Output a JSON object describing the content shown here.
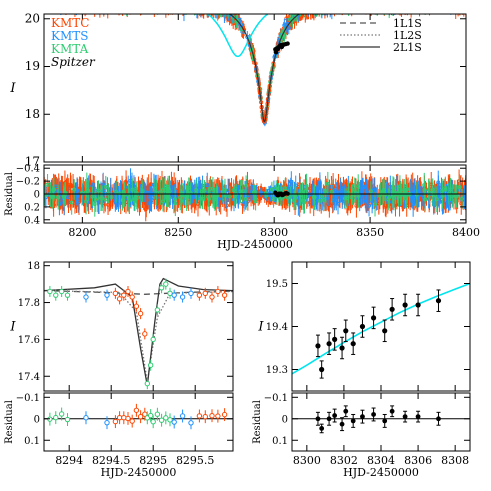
{
  "chart_data": [
    {
      "type": "scatter",
      "panel": "top-main",
      "ylabel": "I",
      "xlim": [
        8180,
        8400
      ],
      "ylim": [
        20.1,
        17.0
      ],
      "y_inverted": true,
      "yticks": [
        17,
        18,
        19,
        20
      ],
      "legend": {
        "placement": "top-left and top-right",
        "datasets": [
          {
            "name": "KMTC",
            "color": "#ff4500"
          },
          {
            "name": "KMTS",
            "color": "#1e90ff"
          },
          {
            "name": "KMTA",
            "color": "#2ecc71"
          },
          {
            "name": "Spitzer",
            "color": "#000000"
          }
        ],
        "models": [
          {
            "name": "1L1S",
            "style": "dashed",
            "color": "#555555"
          },
          {
            "name": "1L2S",
            "style": "dotted",
            "color": "#777777"
          },
          {
            "name": "2L1S",
            "style": "solid",
            "color": "#333333"
          }
        ]
      },
      "ground_model": {
        "t0": 8294.9,
        "u0": 0.1,
        "tE": 16,
        "baseline": 20.35
      },
      "spitzer_model": {
        "t0": 8281,
        "u0": 0.35,
        "tE": 16,
        "baseline": 20.4,
        "color": "#00e5ee"
      },
      "spitzer_points": [
        [
          8300.6,
          19.36
        ],
        [
          8301.0,
          19.3
        ],
        [
          8301.5,
          19.38
        ],
        [
          8302.0,
          19.37
        ],
        [
          8302.5,
          19.41
        ],
        [
          8303.0,
          19.43
        ],
        [
          8303.5,
          19.45
        ],
        [
          8304.0,
          19.41
        ],
        [
          8304.5,
          19.45
        ],
        [
          8305.0,
          19.46
        ],
        [
          8306.0,
          19.47
        ],
        [
          8307.0,
          19.48
        ]
      ]
    },
    {
      "type": "scatter",
      "panel": "top-residual",
      "ylabel": "Residual",
      "xlabel": "HJD-2450000",
      "xlim": [
        8180,
        8400
      ],
      "ylim": [
        -0.45,
        0.45
      ],
      "xticks": [
        8200,
        8250,
        8300,
        8350,
        8400
      ],
      "yticks": [
        -0.4,
        -0.2,
        0,
        0.2,
        0.4
      ],
      "ytick_labels": [
        "−0.4",
        "−0.2",
        "0",
        "0.2",
        "0.4"
      ]
    },
    {
      "type": "scatter",
      "panel": "bottom-left-main",
      "ylabel": "I",
      "xlim": [
        8293.7,
        8295.95
      ],
      "ylim": [
        18.02,
        17.32
      ],
      "y_inverted": true,
      "yticks": [
        17.4,
        17.6,
        17.8,
        18
      ],
      "ytick_labels": [
        "17.4",
        "17.6",
        "17.8",
        "18"
      ],
      "points": [
        {
          "dataset": "KMTA",
          "x": 8293.77,
          "y": 17.86
        },
        {
          "dataset": "KMTA",
          "x": 8293.84,
          "y": 17.84
        },
        {
          "dataset": "KMTA",
          "x": 8293.91,
          "y": 17.86
        },
        {
          "dataset": "KMTA",
          "x": 8293.98,
          "y": 17.84
        },
        {
          "dataset": "KMTS",
          "x": 8294.2,
          "y": 17.83
        },
        {
          "dataset": "KMTS",
          "x": 8294.45,
          "y": 17.84
        },
        {
          "dataset": "KMTC",
          "x": 8294.55,
          "y": 17.85
        },
        {
          "dataset": "KMTC",
          "x": 8294.6,
          "y": 17.82
        },
        {
          "dataset": "KMTC",
          "x": 8294.65,
          "y": 17.84
        },
        {
          "dataset": "KMTC",
          "x": 8294.7,
          "y": 17.86
        },
        {
          "dataset": "KMTC",
          "x": 8294.75,
          "y": 17.83
        },
        {
          "dataset": "KMTC",
          "x": 8294.8,
          "y": 17.78
        },
        {
          "dataset": "KMTC",
          "x": 8294.85,
          "y": 17.74
        },
        {
          "dataset": "KMTC",
          "x": 8294.9,
          "y": 17.63
        },
        {
          "dataset": "KMTA",
          "x": 8294.93,
          "y": 17.36
        },
        {
          "dataset": "KMTA",
          "x": 8294.97,
          "y": 17.46
        },
        {
          "dataset": "KMTA",
          "x": 8295.0,
          "y": 17.6
        },
        {
          "dataset": "KMTA",
          "x": 8295.05,
          "y": 17.76
        },
        {
          "dataset": "KMTA",
          "x": 8295.1,
          "y": 17.88
        },
        {
          "dataset": "KMTA",
          "x": 8295.15,
          "y": 17.9
        },
        {
          "dataset": "KMTA",
          "x": 8295.2,
          "y": 17.85
        },
        {
          "dataset": "KMTS",
          "x": 8295.25,
          "y": 17.84
        },
        {
          "dataset": "KMTS",
          "x": 8295.35,
          "y": 17.83
        },
        {
          "dataset": "KMTS",
          "x": 8295.45,
          "y": 17.85
        },
        {
          "dataset": "KMTC",
          "x": 8295.55,
          "y": 17.84
        },
        {
          "dataset": "KMTC",
          "x": 8295.62,
          "y": 17.85
        },
        {
          "dataset": "KMTC",
          "x": 8295.7,
          "y": 17.83
        },
        {
          "dataset": "KMTC",
          "x": 8295.77,
          "y": 17.86
        },
        {
          "dataset": "KMTC",
          "x": 8295.85,
          "y": 17.84
        }
      ],
      "models": {
        "1L1S": [
          [
            8293.7,
            17.865
          ],
          [
            8294.4,
            17.855
          ],
          [
            8294.9,
            17.845
          ],
          [
            8295.4,
            17.855
          ],
          [
            8295.95,
            17.862
          ]
        ],
        "1L2S": [
          [
            8293.7,
            17.865
          ],
          [
            8294.6,
            17.855
          ],
          [
            8294.8,
            17.75
          ],
          [
            8294.93,
            17.37
          ],
          [
            8295.05,
            17.72
          ],
          [
            8295.2,
            17.85
          ],
          [
            8295.95,
            17.86
          ]
        ],
        "2L1S": [
          [
            8293.7,
            17.865
          ],
          [
            8294.3,
            17.88
          ],
          [
            8294.55,
            17.9
          ],
          [
            8294.75,
            17.83
          ],
          [
            8294.85,
            17.55
          ],
          [
            8294.93,
            17.35
          ],
          [
            8295.02,
            17.7
          ],
          [
            8295.08,
            17.9
          ],
          [
            8295.12,
            17.93
          ],
          [
            8295.3,
            17.89
          ],
          [
            8295.6,
            17.87
          ],
          [
            8295.95,
            17.865
          ]
        ]
      }
    },
    {
      "type": "scatter",
      "panel": "bottom-left-residual",
      "ylabel": "Residual",
      "xlabel": "HJD-2450000",
      "xlim": [
        8293.7,
        8295.95
      ],
      "ylim": [
        -0.12,
        0.15
      ],
      "xticks": [
        8294,
        8294.5,
        8295,
        8295.5
      ],
      "xtick_labels": [
        "8294",
        "8294.5",
        "8295",
        "8295.5"
      ],
      "yticks": [
        -0.1,
        0,
        0.1
      ],
      "ytick_labels": [
        "−0.1",
        "0",
        "0.1"
      ]
    },
    {
      "type": "scatter",
      "panel": "bottom-right-main",
      "ylabel": "I",
      "xlim": [
        8299.2,
        8308.8
      ],
      "ylim": [
        19.55,
        19.25
      ],
      "y_inverted": true,
      "yticks": [
        19.3,
        19.4,
        19.5
      ],
      "ytick_labels": [
        "19.3",
        "19.4",
        "19.5"
      ],
      "model_color": "#00e5ee",
      "points": [
        {
          "x": 8300.6,
          "y": 19.355,
          "err": 0.025
        },
        {
          "x": 8300.8,
          "y": 19.3,
          "err": 0.02
        },
        {
          "x": 8301.2,
          "y": 19.36,
          "err": 0.025
        },
        {
          "x": 8301.5,
          "y": 19.37,
          "err": 0.025
        },
        {
          "x": 8301.9,
          "y": 19.35,
          "err": 0.025
        },
        {
          "x": 8302.1,
          "y": 19.39,
          "err": 0.025
        },
        {
          "x": 8302.5,
          "y": 19.36,
          "err": 0.025
        },
        {
          "x": 8303.0,
          "y": 19.4,
          "err": 0.025
        },
        {
          "x": 8303.6,
          "y": 19.42,
          "err": 0.025
        },
        {
          "x": 8304.2,
          "y": 19.39,
          "err": 0.025
        },
        {
          "x": 8304.6,
          "y": 19.44,
          "err": 0.025
        },
        {
          "x": 8305.3,
          "y": 19.45,
          "err": 0.025
        },
        {
          "x": 8306.0,
          "y": 19.45,
          "err": 0.025
        },
        {
          "x": 8307.1,
          "y": 19.46,
          "err": 0.025
        }
      ],
      "model": [
        [
          8299.2,
          19.29
        ],
        [
          8300,
          19.31
        ],
        [
          8301,
          19.337
        ],
        [
          8302,
          19.363
        ],
        [
          8303,
          19.388
        ],
        [
          8304,
          19.41
        ],
        [
          8305,
          19.432
        ],
        [
          8306,
          19.452
        ],
        [
          8307,
          19.47
        ],
        [
          8308,
          19.487
        ],
        [
          8308.8,
          19.5
        ]
      ]
    },
    {
      "type": "scatter",
      "panel": "bottom-right-residual",
      "ylabel": "Residual",
      "xlabel": "HJD-2450000",
      "xlim": [
        8299.2,
        8308.8
      ],
      "ylim": [
        -0.12,
        0.15
      ],
      "xticks": [
        8300,
        8302,
        8304,
        8306,
        8308
      ],
      "yticks": [
        -0.1,
        0,
        0.1
      ],
      "ytick_labels": [
        "−0.1",
        "0",
        "0.1"
      ],
      "points": [
        {
          "x": 8300.6,
          "y": 0.0,
          "err": 0.03
        },
        {
          "x": 8300.8,
          "y": 0.045,
          "err": 0.02
        },
        {
          "x": 8301.2,
          "y": 0.0,
          "err": 0.03
        },
        {
          "x": 8301.5,
          "y": -0.015,
          "err": 0.03
        },
        {
          "x": 8301.9,
          "y": 0.025,
          "err": 0.03
        },
        {
          "x": 8302.1,
          "y": -0.035,
          "err": 0.025
        },
        {
          "x": 8302.5,
          "y": 0.01,
          "err": 0.03
        },
        {
          "x": 8303.0,
          "y": -0.01,
          "err": 0.03
        },
        {
          "x": 8303.6,
          "y": -0.02,
          "err": 0.03
        },
        {
          "x": 8304.2,
          "y": 0.01,
          "err": 0.03
        },
        {
          "x": 8304.6,
          "y": -0.035,
          "err": 0.025
        },
        {
          "x": 8305.3,
          "y": -0.01,
          "err": 0.025
        },
        {
          "x": 8306.0,
          "y": -0.01,
          "err": 0.025
        },
        {
          "x": 8307.1,
          "y": 0.0,
          "err": 0.03
        }
      ]
    }
  ]
}
